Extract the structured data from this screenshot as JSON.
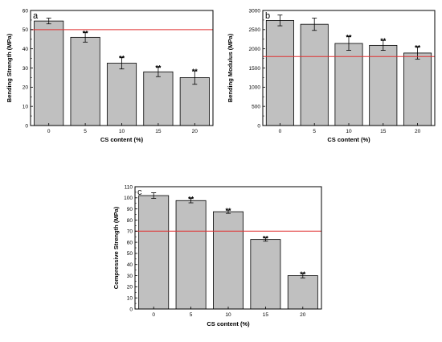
{
  "chart_data": [
    {
      "type": "bar",
      "panel": "a",
      "categories": [
        "0",
        "5",
        "10",
        "15",
        "20"
      ],
      "values": [
        54.5,
        46,
        32.5,
        28,
        25
      ],
      "errors": [
        1.5,
        2.5,
        3,
        2.5,
        3.5
      ],
      "significance": [
        "",
        "**",
        "**",
        "**",
        "**"
      ],
      "reference_line": 50,
      "xlabel": "CS content (%)",
      "ylabel": "Bending Strength (MPa)",
      "ylim": [
        0,
        60
      ],
      "yticks": [
        "0",
        "10",
        "20",
        "30",
        "40",
        "50",
        "60"
      ],
      "grid": false,
      "colors": {
        "bar": "#c0c0c0",
        "reference_line": "#e03030"
      }
    },
    {
      "type": "bar",
      "panel": "b",
      "categories": [
        "0",
        "5",
        "10",
        "15",
        "20"
      ],
      "values": [
        2740,
        2640,
        2140,
        2090,
        1890
      ],
      "errors": [
        140,
        160,
        180,
        130,
        160
      ],
      "significance": [
        "",
        "",
        "**",
        "**",
        "**"
      ],
      "reference_line": 1800,
      "xlabel": "CS content (%)",
      "ylabel": "Bending Modulus (MPa)",
      "ylim": [
        0,
        3000
      ],
      "yticks": [
        "0",
        "500",
        "1000",
        "1500",
        "2000",
        "2500",
        "3000"
      ],
      "grid": false,
      "colors": {
        "bar": "#c0c0c0",
        "reference_line": "#e03030"
      }
    },
    {
      "type": "bar",
      "panel": "c",
      "categories": [
        "0",
        "5",
        "10",
        "15",
        "20"
      ],
      "values": [
        102,
        97.5,
        87.5,
        62.5,
        30
      ],
      "errors": [
        2.5,
        2,
        1.5,
        1.5,
        2
      ],
      "significance": [
        "",
        "**",
        "**",
        "**",
        "**"
      ],
      "reference_line": 70,
      "xlabel": "CS content (%)",
      "ylabel": "Compressive Strength (MPa)",
      "ylim": [
        0,
        110
      ],
      "yticks": [
        "0",
        "10",
        "20",
        "30",
        "40",
        "50",
        "60",
        "70",
        "80",
        "90",
        "100",
        "110"
      ],
      "grid": false,
      "colors": {
        "bar": "#c0c0c0",
        "reference_line": "#e03030"
      }
    }
  ]
}
